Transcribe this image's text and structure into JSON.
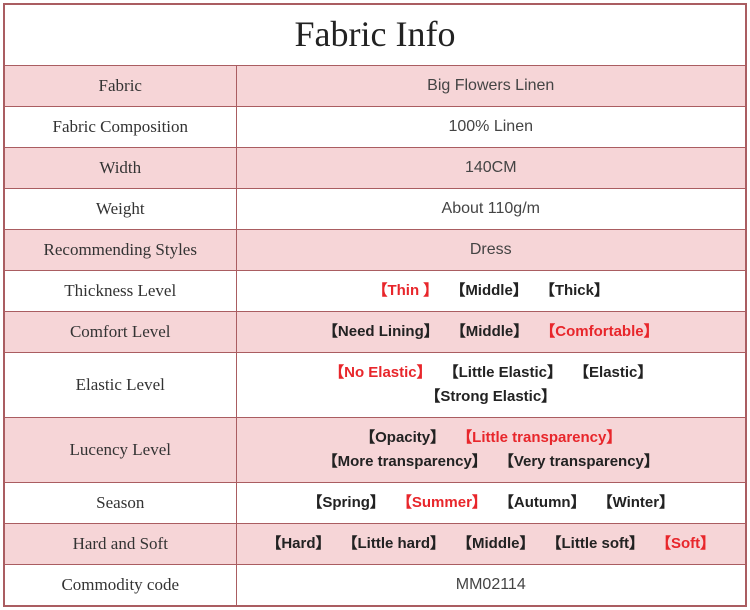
{
  "title": "Fabric Info",
  "colors": {
    "border": "#aa5d61",
    "pink_bg": "#f6d5d7",
    "white_bg": "#ffffff",
    "text": "#333333",
    "value_text": "#444444",
    "selected": "#e8262b",
    "normal_opt": "#222222"
  },
  "typography": {
    "title_fontsize": 36,
    "label_fontsize": 17,
    "value_fontsize": 16,
    "option_fontsize": 15
  },
  "rows": [
    {
      "label": "Fabric",
      "type": "text",
      "value": "Big Flowers Linen",
      "label_bg": "pink",
      "value_bg": "pink"
    },
    {
      "label": "Fabric Composition",
      "type": "text",
      "value": "100% Linen",
      "label_bg": "white",
      "value_bg": "white"
    },
    {
      "label": "Width",
      "type": "text",
      "value": "140CM",
      "label_bg": "pink",
      "value_bg": "pink"
    },
    {
      "label": "Weight",
      "type": "text",
      "value": "About 110g/m",
      "label_bg": "white",
      "value_bg": "white"
    },
    {
      "label": "Recommending Styles",
      "type": "text",
      "value": "Dress",
      "label_bg": "pink",
      "value_bg": "pink"
    },
    {
      "label": "Thickness Level",
      "type": "options",
      "label_bg": "white",
      "value_bg": "white",
      "options": [
        {
          "text": "Thin ",
          "selected": true
        },
        {
          "text": "Middle",
          "selected": false
        },
        {
          "text": "Thick",
          "selected": false
        }
      ]
    },
    {
      "label": "Comfort Level",
      "type": "options",
      "label_bg": "pink",
      "value_bg": "pink",
      "options": [
        {
          "text": "Need Lining",
          "selected": false
        },
        {
          "text": "Middle",
          "selected": false
        },
        {
          "text": "Comfortable",
          "selected": true
        }
      ]
    },
    {
      "label": "Elastic Level",
      "type": "options",
      "label_bg": "white",
      "value_bg": "white",
      "twoLine": true,
      "options": [
        {
          "text": "No Elastic",
          "selected": true
        },
        {
          "text": "Little Elastic",
          "selected": false
        },
        {
          "text": "Elastic",
          "selected": false
        },
        {
          "text": "Strong Elastic",
          "selected": false
        }
      ],
      "breakAfter": 3
    },
    {
      "label": "Lucency Level",
      "type": "options",
      "label_bg": "pink",
      "value_bg": "pink",
      "twoLine": true,
      "options": [
        {
          "text": "Opacity",
          "selected": false
        },
        {
          "text": "Little transparency",
          "selected": true
        },
        {
          "text": "More transparency",
          "selected": false
        },
        {
          "text": "Very transparency",
          "selected": false
        }
      ],
      "breakAfter": 2
    },
    {
      "label": "Season",
      "type": "options",
      "label_bg": "white",
      "value_bg": "white",
      "options": [
        {
          "text": "Spring",
          "selected": false
        },
        {
          "text": "Summer",
          "selected": true
        },
        {
          "text": "Autumn",
          "selected": false
        },
        {
          "text": "Winter",
          "selected": false
        }
      ]
    },
    {
      "label": "Hard and Soft",
      "type": "options",
      "label_bg": "pink",
      "value_bg": "pink",
      "options": [
        {
          "text": "Hard",
          "selected": false
        },
        {
          "text": "Little hard",
          "selected": false
        },
        {
          "text": "Middle",
          "selected": false
        },
        {
          "text": "Little soft",
          "selected": false
        },
        {
          "text": "Soft",
          "selected": true
        }
      ]
    },
    {
      "label": "Commodity code",
      "type": "text",
      "value": "MM02114",
      "label_bg": "white",
      "value_bg": "white"
    }
  ]
}
